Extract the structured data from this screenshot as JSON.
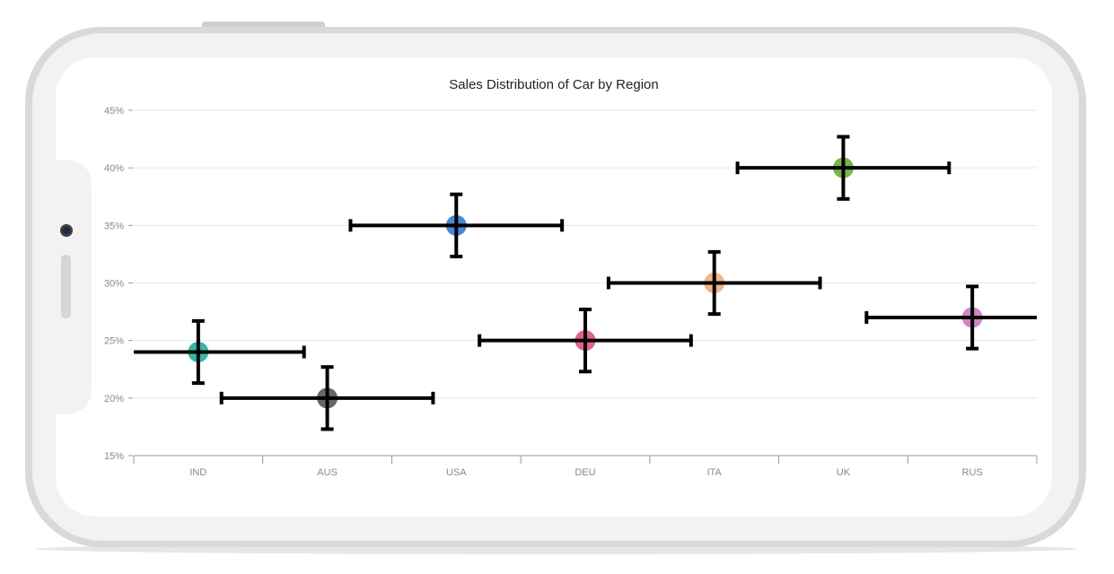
{
  "chart_data": {
    "type": "scatter",
    "title": "Sales Distribution of Car by Region",
    "xlabel": "",
    "ylabel": "",
    "categories": [
      "IND",
      "AUS",
      "USA",
      "DEU",
      "ITA",
      "UK",
      "RUS"
    ],
    "y_ticks": [
      "15%",
      "20%",
      "25%",
      "30%",
      "35%",
      "40%",
      "45%"
    ],
    "ylim": [
      15,
      45
    ],
    "y_unit": "%",
    "grid": true,
    "legend": "none",
    "series": [
      {
        "values": [
          24,
          20,
          35,
          25,
          30,
          40,
          27
        ],
        "y_error": [
          2.7,
          2.7,
          2.7,
          2.7,
          2.7,
          2.7,
          2.7
        ],
        "x_error": [
          0.82,
          0.82,
          0.82,
          0.82,
          0.82,
          0.82,
          0.82
        ],
        "point_colors": [
          "#2bb3a8",
          "#5f5f5f",
          "#3f7fd3",
          "#e0588a",
          "#f3b07e",
          "#72b040",
          "#cb7fc0"
        ],
        "error_bar_color": "#000000"
      }
    ]
  }
}
